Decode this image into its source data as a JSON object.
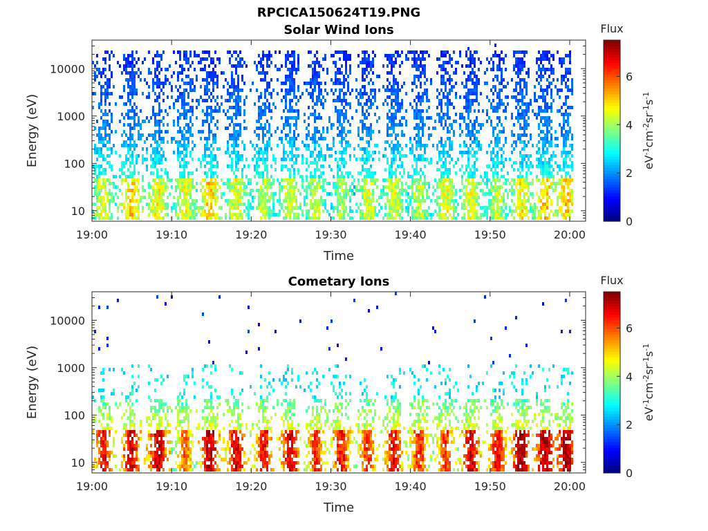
{
  "figure": {
    "title_line1": "RPCICA150624T19.PNG",
    "title_line2": "Solar Wind Ions"
  },
  "chart_data": [
    {
      "type": "heatmap",
      "title": "Solar Wind Ions",
      "xlabel": "Time",
      "ylabel": "Energy (eV)",
      "x_range": [
        "19:00",
        "20:02"
      ],
      "x_ticks": [
        "19:00",
        "19:10",
        "19:20",
        "19:30",
        "19:40",
        "19:50",
        "20:00"
      ],
      "y_scale": "log",
      "y_range": [
        6,
        40000
      ],
      "y_ticks": [
        "10",
        "100",
        "1000",
        "10000"
      ],
      "colorbar": {
        "title": "Flux",
        "label": "eV-1cm-2sr-1s-1",
        "range": [
          0,
          7.5
        ],
        "ticks": [
          "0",
          "2",
          "4",
          "6"
        ],
        "colormap": "jet"
      },
      "bursts": [
        {
          "t": 1.3,
          "low": 4.2,
          "peak": 4.5
        },
        {
          "t": 4.8,
          "low": 4.8,
          "peak": 5.8
        },
        {
          "t": 8.2,
          "low": 4.5,
          "peak": 5.5
        },
        {
          "t": 11.5,
          "low": 4.3,
          "peak": 5.0
        },
        {
          "t": 14.7,
          "low": 4.8,
          "peak": 5.8
        },
        {
          "t": 18.0,
          "low": 4.3,
          "peak": 5.0
        },
        {
          "t": 21.5,
          "low": 4.0,
          "peak": 4.7
        },
        {
          "t": 24.8,
          "low": 4.2,
          "peak": 5.0
        },
        {
          "t": 28.0,
          "low": 4.0,
          "peak": 4.6
        },
        {
          "t": 31.2,
          "low": 3.8,
          "peak": 4.5
        },
        {
          "t": 34.5,
          "low": 4.2,
          "peak": 4.8
        },
        {
          "t": 37.8,
          "low": 4.2,
          "peak": 5.0
        },
        {
          "t": 41.0,
          "low": 4.0,
          "peak": 4.6
        },
        {
          "t": 44.3,
          "low": 4.3,
          "peak": 4.9
        },
        {
          "t": 47.5,
          "low": 4.3,
          "peak": 5.0
        },
        {
          "t": 50.8,
          "low": 4.0,
          "peak": 4.6
        },
        {
          "t": 53.8,
          "low": 4.5,
          "peak": 5.8
        },
        {
          "t": 56.8,
          "low": 4.8,
          "peak": 5.8
        },
        {
          "t": 59.5,
          "low": 4.8,
          "peak": 5.5
        }
      ],
      "grid": false
    },
    {
      "type": "heatmap",
      "title": "Cometary Ions",
      "xlabel": "Time",
      "ylabel": "Energy (eV)",
      "x_range": [
        "19:00",
        "20:02"
      ],
      "x_ticks": [
        "19:00",
        "19:10",
        "19:20",
        "19:30",
        "19:40",
        "19:50",
        "20:00"
      ],
      "y_scale": "log",
      "y_range": [
        6,
        40000
      ],
      "y_ticks": [
        "10",
        "100",
        "1000",
        "10000"
      ],
      "colorbar": {
        "title": "Flux",
        "label": "eV-1cm-2sr-1s-1",
        "range": [
          0,
          7.5
        ],
        "ticks": [
          "0",
          "2",
          "4",
          "6"
        ],
        "colormap": "jet"
      },
      "bursts": [
        {
          "t": 1.3,
          "low": 5.8,
          "peak": 6.5
        },
        {
          "t": 4.8,
          "low": 6.0,
          "peak": 6.8
        },
        {
          "t": 8.2,
          "low": 6.3,
          "peak": 7.0
        },
        {
          "t": 11.5,
          "low": 5.0,
          "peak": 5.8
        },
        {
          "t": 14.7,
          "low": 6.3,
          "peak": 7.0
        },
        {
          "t": 18.0,
          "low": 6.0,
          "peak": 6.8
        },
        {
          "t": 21.5,
          "low": 5.8,
          "peak": 6.5
        },
        {
          "t": 24.8,
          "low": 6.0,
          "peak": 6.8
        },
        {
          "t": 28.0,
          "low": 5.5,
          "peak": 6.2
        },
        {
          "t": 31.2,
          "low": 5.8,
          "peak": 6.5
        },
        {
          "t": 34.5,
          "low": 5.5,
          "peak": 6.2
        },
        {
          "t": 37.8,
          "low": 5.8,
          "peak": 6.5
        },
        {
          "t": 41.0,
          "low": 5.5,
          "peak": 6.2
        },
        {
          "t": 44.3,
          "low": 5.5,
          "peak": 6.2
        },
        {
          "t": 47.5,
          "low": 6.0,
          "peak": 6.8
        },
        {
          "t": 50.8,
          "low": 5.8,
          "peak": 6.5
        },
        {
          "t": 53.8,
          "low": 6.5,
          "peak": 7.2
        },
        {
          "t": 56.8,
          "low": 6.5,
          "peak": 7.2
        },
        {
          "t": 59.5,
          "low": 6.5,
          "peak": 7.2
        }
      ],
      "grid": false
    }
  ]
}
